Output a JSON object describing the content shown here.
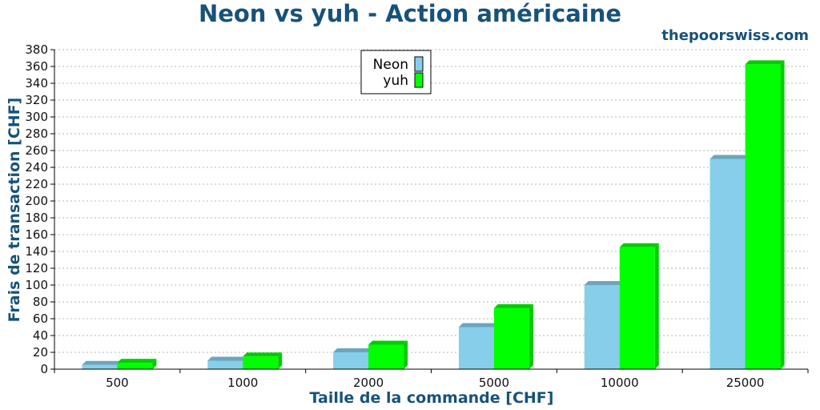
{
  "source": "thepoorswiss.com",
  "chart_data": {
    "type": "bar",
    "title": "Neon vs yuh - Action américaine",
    "xlabel": "Taille de la commande [CHF]",
    "ylabel": "Frais de transaction [CHF]",
    "categories": [
      "500",
      "1000",
      "2000",
      "5000",
      "10000",
      "25000"
    ],
    "series": [
      {
        "name": "Neon",
        "values": [
          5,
          10,
          20,
          50,
          100,
          250
        ],
        "color": "#87ceeb"
      },
      {
        "name": "yuh",
        "values": [
          7.5,
          15,
          29,
          72.5,
          145,
          362.5
        ],
        "color": "#00ff00"
      }
    ],
    "ylim": [
      0,
      380
    ],
    "yticks": [
      0,
      20,
      40,
      60,
      80,
      100,
      120,
      140,
      160,
      180,
      200,
      220,
      240,
      260,
      280,
      300,
      320,
      340,
      360,
      380
    ],
    "grid": true,
    "legend_position": "top-center",
    "style": "3d"
  }
}
